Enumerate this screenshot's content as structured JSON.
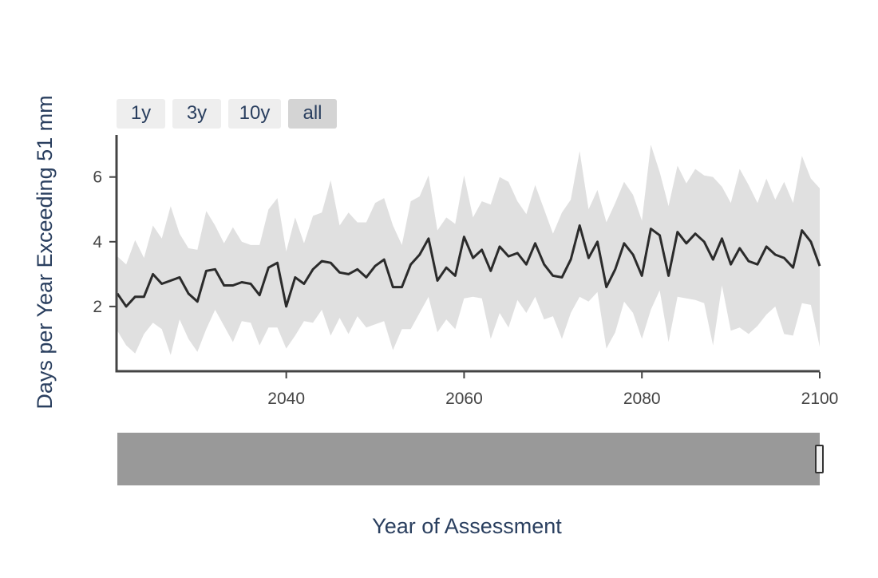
{
  "range_selector": {
    "buttons": [
      {
        "label": "1y",
        "active": false
      },
      {
        "label": "3y",
        "active": false
      },
      {
        "label": "10y",
        "active": false
      },
      {
        "label": "all",
        "active": true
      }
    ]
  },
  "chart_data": {
    "type": "line",
    "title": "",
    "xlabel": "Year of Assessment",
    "ylabel": "Days per Year Exceeding 51 mm",
    "xlim": [
      2021,
      2100
    ],
    "ylim": [
      0,
      7.3
    ],
    "x_ticks": [
      2040,
      2060,
      2080,
      2100
    ],
    "y_ticks": [
      2,
      4,
      6
    ],
    "grid": false,
    "legend": "none",
    "band_color": "#e0e0e0",
    "line_color": "#2b2b2b",
    "rangeslider_color": "#999999",
    "series": [
      {
        "x_start": 2021,
        "median": [
          2.4,
          2.0,
          2.3,
          2.3,
          3.0,
          2.7,
          2.8,
          2.9,
          2.4,
          2.15,
          3.1,
          3.15,
          2.65,
          2.65,
          2.75,
          2.7,
          2.35,
          3.2,
          3.35,
          2.0,
          2.9,
          2.7,
          3.15,
          3.4,
          3.35,
          3.05,
          3.0,
          3.15,
          2.9,
          3.25,
          3.45,
          2.6,
          2.6,
          3.3,
          3.6,
          4.1,
          2.8,
          3.2,
          2.95,
          4.15,
          3.5,
          3.75,
          3.1,
          3.85,
          3.55,
          3.65,
          3.3,
          3.95,
          3.3,
          2.95,
          2.9,
          3.45,
          4.5,
          3.5,
          4.0,
          2.6,
          3.15,
          3.95,
          3.6,
          2.95,
          4.4,
          4.2,
          2.95,
          4.3,
          3.95,
          4.25,
          4.0,
          3.45,
          4.1,
          3.3,
          3.8,
          3.4,
          3.3,
          3.85,
          3.6,
          3.5,
          3.2,
          4.35,
          4.0,
          3.25
        ],
        "upper": [
          3.55,
          3.3,
          4.05,
          3.5,
          4.5,
          4.1,
          5.1,
          4.25,
          3.8,
          3.75,
          4.95,
          4.5,
          3.95,
          4.45,
          4.0,
          3.9,
          3.9,
          5.0,
          5.35,
          3.7,
          4.75,
          3.95,
          4.8,
          4.9,
          5.9,
          4.5,
          4.9,
          4.6,
          4.6,
          5.2,
          5.35,
          4.5,
          3.9,
          5.25,
          5.4,
          6.05,
          4.35,
          4.75,
          4.55,
          6.05,
          4.75,
          5.25,
          5.15,
          6.0,
          5.85,
          5.25,
          4.85,
          5.75,
          5.0,
          4.25,
          4.9,
          5.3,
          6.8,
          5.0,
          5.6,
          4.6,
          5.2,
          5.85,
          5.45,
          4.65,
          7.0,
          6.15,
          5.1,
          6.35,
          5.8,
          6.25,
          6.05,
          6.0,
          5.7,
          5.2,
          6.25,
          5.75,
          5.2,
          5.95,
          5.3,
          5.85,
          5.2,
          6.65,
          5.95,
          5.65
        ],
        "lower": [
          1.25,
          0.8,
          0.55,
          1.15,
          1.5,
          1.3,
          0.5,
          1.6,
          1.0,
          0.6,
          1.3,
          1.9,
          1.4,
          0.9,
          1.55,
          1.5,
          0.8,
          1.35,
          1.35,
          0.7,
          1.1,
          1.55,
          1.5,
          1.9,
          1.1,
          1.65,
          1.15,
          1.7,
          1.35,
          1.45,
          1.55,
          0.65,
          1.3,
          1.3,
          1.8,
          2.3,
          1.2,
          1.6,
          1.3,
          2.25,
          2.3,
          2.25,
          1.0,
          1.8,
          1.35,
          2.2,
          1.8,
          2.3,
          1.6,
          1.7,
          1.0,
          1.8,
          2.3,
          2.15,
          2.45,
          0.7,
          1.2,
          2.15,
          1.8,
          1.0,
          1.9,
          2.5,
          0.9,
          2.3,
          2.25,
          2.2,
          2.1,
          0.8,
          2.65,
          1.25,
          1.35,
          1.15,
          1.4,
          1.75,
          2.0,
          1.15,
          1.1,
          2.1,
          2.05,
          0.75
        ]
      }
    ]
  }
}
